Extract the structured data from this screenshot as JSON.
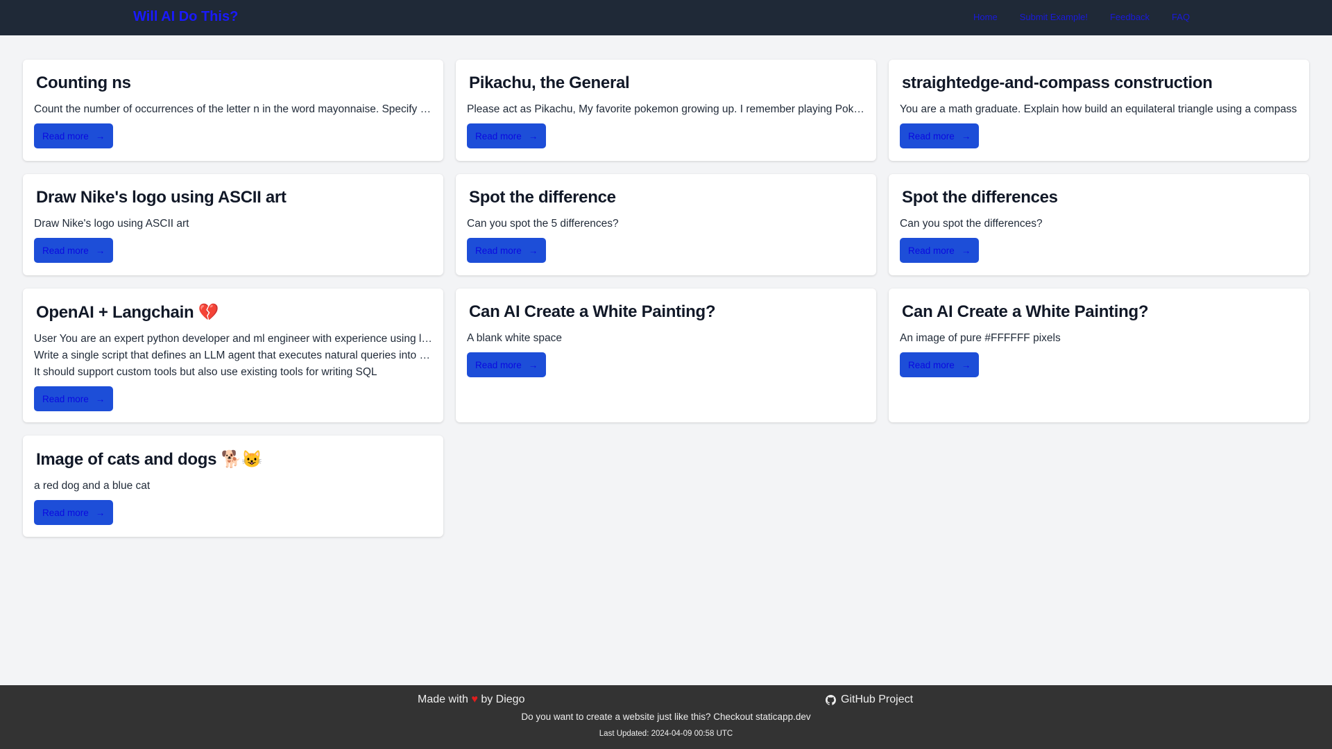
{
  "header": {
    "title": "Will AI Do This?",
    "nav": [
      "Home",
      "Submit Example!",
      "Feedback",
      "FAQ"
    ]
  },
  "cards": [
    {
      "title": "Counting ns",
      "lines": [
        "Count the number of occurrences of the letter n in the word mayonnaise. Specify the count"
      ],
      "button": "Read more"
    },
    {
      "title": "Pikachu, the General",
      "lines": [
        "Please act as Pikachu, My favorite pokemon growing up. I remember playing Pokemon"
      ],
      "button": "Read more"
    },
    {
      "title": "straightedge-and-compass construction",
      "lines": [
        "You are a math graduate. Explain how build an equilateral triangle using a compass"
      ],
      "button": "Read more"
    },
    {
      "title": "Draw Nike's logo using ASCII art",
      "lines": [
        "Draw Nike's logo using ASCII art"
      ],
      "button": "Read more"
    },
    {
      "title": "Spot the difference",
      "lines": [
        "Can you spot the 5 differences?"
      ],
      "button": "Read more"
    },
    {
      "title": "Spot the differences",
      "lines": [
        "Can you spot the differences?"
      ],
      "button": "Read more"
    },
    {
      "title": "OpenAI + Langchain 💔",
      "lines": [
        "User You are an expert python developer and ml engineer with experience using langchain",
        "Write a single script that defines an LLM agent that executes natural queries into SQL",
        "It should support custom tools but also use existing tools for writing SQL"
      ],
      "button": "Read more"
    },
    {
      "title": "Can AI Create a White Painting?",
      "lines": [
        "A blank white space"
      ],
      "button": "Read more"
    },
    {
      "title": "Can AI Create a White Painting?",
      "lines": [
        "An image of pure #FFFFFF pixels"
      ],
      "button": "Read more"
    },
    {
      "title": "Image of cats and dogs 🐕😺",
      "lines": [
        "a red dog and a blue cat"
      ],
      "button": "Read more"
    }
  ],
  "footer": {
    "made_prefix": "Made with",
    "made_suffix": "by Diego",
    "github": "GitHub Project",
    "promo": "Do you want to create a website just like this? Checkout staticapp.dev",
    "updated": "Last Updated: 2024-04-09 00:58 UTC"
  },
  "colors": {
    "header_bg": "#1f2937",
    "button_bg": "#1d4ed8",
    "footer_bg": "#333333",
    "page_bg": "#f3f4f6"
  }
}
